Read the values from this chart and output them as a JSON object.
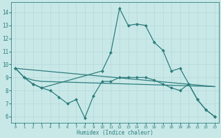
{
  "title": "",
  "xlabel": "Humidex (Indice chaleur)",
  "ylabel": "",
  "bg_color": "#c8e8e8",
  "line_color": "#2e7d7d",
  "grid_color": "#b0d4d4",
  "xlim": [
    -0.5,
    23.5
  ],
  "ylim": [
    5.5,
    14.8
  ],
  "xticks": [
    0,
    1,
    2,
    3,
    4,
    5,
    6,
    7,
    8,
    9,
    10,
    11,
    12,
    13,
    14,
    15,
    16,
    17,
    18,
    19,
    20,
    21,
    22,
    23
  ],
  "yticks": [
    6,
    7,
    8,
    9,
    10,
    11,
    12,
    13,
    14
  ],
  "lines": [
    {
      "x": [
        0,
        1,
        2,
        3,
        10,
        11,
        12,
        13,
        14,
        15,
        16,
        17,
        18,
        19,
        20,
        21,
        22,
        23
      ],
      "y": [
        9.7,
        9.0,
        8.5,
        8.2,
        9.5,
        10.9,
        14.3,
        13.0,
        13.1,
        13.0,
        11.7,
        11.1,
        9.5,
        9.7,
        8.5,
        7.3,
        6.5,
        6.0
      ],
      "marker": "D",
      "markersize": 2.0,
      "linewidth": 0.9
    },
    {
      "x": [
        0,
        1,
        2,
        3,
        4,
        5,
        6,
        7,
        8,
        9,
        10,
        11,
        12,
        13,
        14,
        15,
        16,
        17,
        18,
        19,
        20,
        21,
        22,
        23
      ],
      "y": [
        9.7,
        9.0,
        8.5,
        8.2,
        8.0,
        7.5,
        7.0,
        7.3,
        5.9,
        7.6,
        8.7,
        8.7,
        9.0,
        9.0,
        9.0,
        9.0,
        8.8,
        8.5,
        8.2,
        8.0,
        8.5,
        7.3,
        6.5,
        6.0
      ],
      "marker": "D",
      "markersize": 2.0,
      "linewidth": 0.9
    },
    {
      "x": [
        1,
        2,
        3,
        23
      ],
      "y": [
        9.0,
        8.8,
        8.7,
        8.3
      ],
      "marker": null,
      "markersize": 0,
      "linewidth": 0.9
    },
    {
      "x": [
        0,
        23
      ],
      "y": [
        9.7,
        8.3
      ],
      "marker": null,
      "markersize": 0,
      "linewidth": 0.9
    }
  ]
}
